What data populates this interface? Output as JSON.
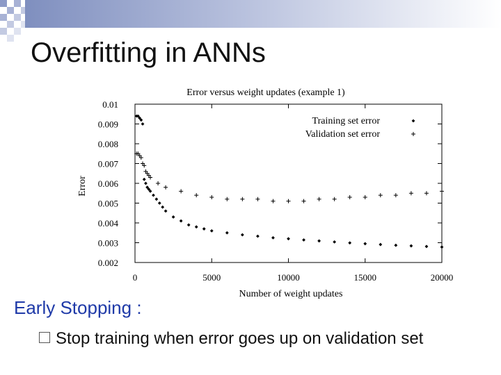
{
  "slide": {
    "title": "Overfitting in ANNs",
    "subheading": "Early Stopping :",
    "bullets": [
      "Stop training when error goes up on validation set"
    ],
    "colors": {
      "title_bar_start": "#7f8fbf",
      "subheading": "#1f3aa8",
      "checker": "#8c9ac8"
    },
    "bullet_icon": "hollow-square-bullet-icon"
  },
  "chart_data": {
    "type": "scatter",
    "title": "Error versus weight updates (example 1)",
    "xlabel": "Number of weight updates",
    "ylabel": "Error",
    "xlim": [
      0,
      20000
    ],
    "ylim": [
      0.002,
      0.01
    ],
    "xticks": [
      0,
      5000,
      10000,
      15000,
      20000
    ],
    "xtick_labels": [
      "0",
      "5000",
      "10000",
      "15000",
      "20000"
    ],
    "yticks": [
      0.002,
      0.003,
      0.004,
      0.005,
      0.006,
      0.007,
      0.008,
      0.009,
      0.01
    ],
    "ytick_labels": [
      "0.002",
      "0.003",
      "0.004",
      "0.005",
      "0.006",
      "0.007",
      "0.008",
      "0.009",
      "0.01"
    ],
    "legend_position": "top-right",
    "grid": false,
    "series": [
      {
        "name": "Training set error",
        "marker": "diamond",
        "x": [
          100,
          200,
          300,
          400,
          500,
          600,
          700,
          800,
          900,
          1000,
          1200,
          1400,
          1600,
          1800,
          2000,
          2500,
          3000,
          3500,
          4000,
          4500,
          5000,
          6000,
          7000,
          8000,
          9000,
          10000,
          11000,
          12000,
          13000,
          14000,
          15000,
          16000,
          17000,
          18000,
          19000,
          20000
        ],
        "y": [
          0.0094,
          0.0094,
          0.0093,
          0.0092,
          0.009,
          0.0062,
          0.006,
          0.0058,
          0.0057,
          0.0056,
          0.0054,
          0.0052,
          0.005,
          0.0048,
          0.0046,
          0.0043,
          0.0041,
          0.0039,
          0.0038,
          0.0037,
          0.0036,
          0.0035,
          0.0034,
          0.00333,
          0.00325,
          0.0032,
          0.00314,
          0.00309,
          0.00304,
          0.00299,
          0.00295,
          0.00291,
          0.00287,
          0.00284,
          0.00281,
          0.00278
        ]
      },
      {
        "name": "Validation set error",
        "marker": "plus",
        "x": [
          100,
          200,
          300,
          400,
          500,
          600,
          700,
          800,
          900,
          1000,
          1500,
          2000,
          3000,
          4000,
          5000,
          6000,
          7000,
          8000,
          9000,
          10000,
          11000,
          12000,
          13000,
          14000,
          15000,
          16000,
          17000,
          18000,
          19000,
          20000
        ],
        "y": [
          0.0075,
          0.0075,
          0.0074,
          0.0073,
          0.007,
          0.0069,
          0.0066,
          0.0065,
          0.0064,
          0.0063,
          0.006,
          0.0058,
          0.0056,
          0.0054,
          0.0053,
          0.0052,
          0.0052,
          0.0052,
          0.0051,
          0.0051,
          0.0051,
          0.0052,
          0.0052,
          0.0053,
          0.0053,
          0.0054,
          0.0054,
          0.0055,
          0.0055,
          0.0056
        ]
      }
    ]
  }
}
